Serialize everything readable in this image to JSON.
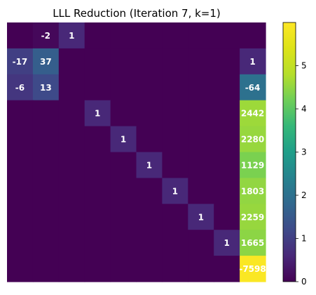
{
  "chart_data": {
    "type": "heatmap",
    "title": "LLL Reduction (Iteration 7, k=1)",
    "colormap": "viridis",
    "color_range": [
      0,
      6
    ],
    "colorbar_ticks": [
      0,
      1,
      2,
      3,
      4,
      5
    ],
    "rows": 10,
    "cols": 10,
    "cells": [
      [
        0,
        0,
        0,
        0,
        0,
        0,
        0,
        0,
        0,
        0
      ],
      [
        0,
        0,
        0,
        0,
        0,
        0,
        0,
        0,
        0,
        0
      ],
      [
        0,
        0,
        0,
        0,
        0,
        0,
        0,
        0,
        0,
        0
      ],
      [
        0,
        0,
        0,
        0,
        0,
        0,
        0,
        0,
        0,
        0
      ],
      [
        0,
        0,
        0,
        0,
        0,
        0,
        0,
        0,
        0,
        0
      ],
      [
        0,
        0,
        0,
        0,
        0,
        0,
        0,
        0,
        0,
        0
      ],
      [
        0,
        0,
        0,
        0,
        0,
        0,
        0,
        0,
        0,
        0
      ],
      [
        0,
        0,
        0,
        0,
        0,
        0,
        0,
        0,
        0,
        0
      ],
      [
        0,
        0,
        0,
        0,
        0,
        0,
        0,
        0,
        0,
        0
      ],
      [
        0,
        0,
        0,
        0,
        0,
        0,
        0,
        0,
        0,
        0
      ]
    ],
    "annotations": [
      {
        "row": 0,
        "col": 1,
        "text": "-2",
        "color_value": 0.1
      },
      {
        "row": 0,
        "col": 2,
        "text": "1",
        "color_value": 0.6
      },
      {
        "row": 1,
        "col": 0,
        "text": "-17",
        "color_value": 1.0
      },
      {
        "row": 1,
        "col": 1,
        "text": "37",
        "color_value": 1.6
      },
      {
        "row": 1,
        "col": 9,
        "text": "1",
        "color_value": 0.6
      },
      {
        "row": 2,
        "col": 0,
        "text": "-6",
        "color_value": 0.85
      },
      {
        "row": 2,
        "col": 1,
        "text": "13",
        "color_value": 1.2
      },
      {
        "row": 2,
        "col": 9,
        "text": "-64",
        "color_value": 2.0
      },
      {
        "row": 3,
        "col": 3,
        "text": "1",
        "color_value": 0.6
      },
      {
        "row": 3,
        "col": 9,
        "text": "2442",
        "color_value": 4.6
      },
      {
        "row": 4,
        "col": 4,
        "text": "1",
        "color_value": 0.6
      },
      {
        "row": 4,
        "col": 9,
        "text": "2280",
        "color_value": 4.55
      },
      {
        "row": 5,
        "col": 5,
        "text": "1",
        "color_value": 0.6
      },
      {
        "row": 5,
        "col": 9,
        "text": "1129",
        "color_value": 4.3
      },
      {
        "row": 6,
        "col": 6,
        "text": "1",
        "color_value": 0.6
      },
      {
        "row": 6,
        "col": 9,
        "text": "1803",
        "color_value": 4.5
      },
      {
        "row": 7,
        "col": 7,
        "text": "1",
        "color_value": 0.6
      },
      {
        "row": 7,
        "col": 9,
        "text": "2259",
        "color_value": 4.55
      },
      {
        "row": 8,
        "col": 8,
        "text": "1",
        "color_value": 0.6
      },
      {
        "row": 8,
        "col": 9,
        "text": "1665",
        "color_value": 4.45
      },
      {
        "row": 9,
        "col": 9,
        "text": "-7598",
        "color_value": 5.95
      }
    ]
  }
}
